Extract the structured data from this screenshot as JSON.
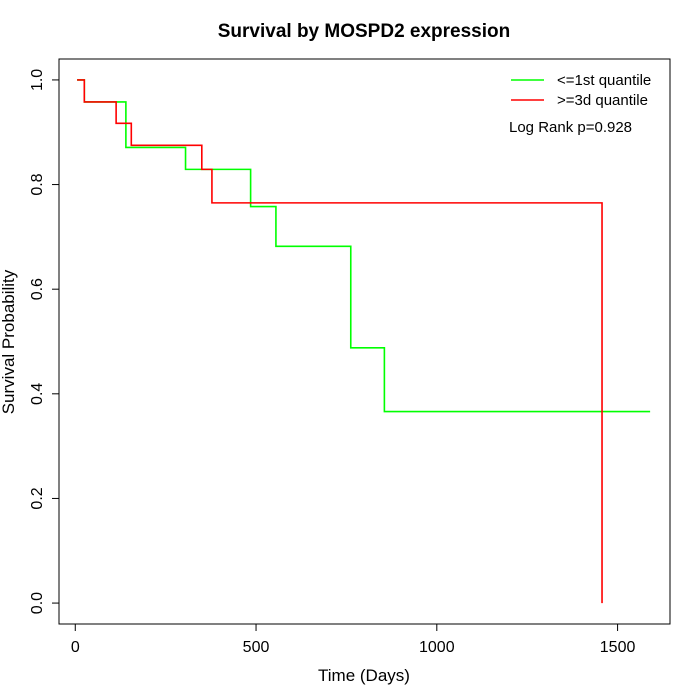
{
  "chart_data": {
    "type": "line",
    "title": "Survival by MOSPD2 expression",
    "xlabel": "Time (Days)",
    "ylabel": "Survival Probability",
    "xlim": [
      -45,
      1645
    ],
    "ylim": [
      -0.04,
      1.04
    ],
    "xticks": [
      0,
      500,
      1000,
      1500
    ],
    "yticks": [
      0.0,
      0.2,
      0.4,
      0.6,
      0.8,
      1.0
    ],
    "xtick_labels": [
      "0",
      "500",
      "1000",
      "1500"
    ],
    "ytick_labels": [
      "0.0",
      "0.2",
      "0.4",
      "0.6",
      "0.8",
      "1.0"
    ],
    "grid": false,
    "legend_position": "top-right",
    "annotation": "Log Rank p=0.928",
    "series": [
      {
        "name": "<=1st quantile",
        "color": "#00ff00",
        "step_points": [
          [
            5,
            1.0
          ],
          [
            25,
            0.958
          ],
          [
            128,
            0.958
          ],
          [
            140,
            0.871
          ],
          [
            305,
            0.871
          ],
          [
            305,
            0.829
          ],
          [
            485,
            0.829
          ],
          [
            485,
            0.758
          ],
          [
            555,
            0.758
          ],
          [
            555,
            0.682
          ],
          [
            762,
            0.682
          ],
          [
            762,
            0.488
          ],
          [
            855,
            0.488
          ],
          [
            855,
            0.366
          ],
          [
            1590,
            0.366
          ]
        ]
      },
      {
        "name": ">=3d quantile",
        "color": "#ff0000",
        "step_points": [
          [
            5,
            1.0
          ],
          [
            25,
            0.958
          ],
          [
            113,
            0.958
          ],
          [
            113,
            0.917
          ],
          [
            155,
            0.917
          ],
          [
            155,
            0.875
          ],
          [
            350,
            0.875
          ],
          [
            350,
            0.829
          ],
          [
            378,
            0.829
          ],
          [
            378,
            0.765
          ],
          [
            1457,
            0.765
          ],
          [
            1457,
            0.0
          ]
        ]
      }
    ]
  }
}
